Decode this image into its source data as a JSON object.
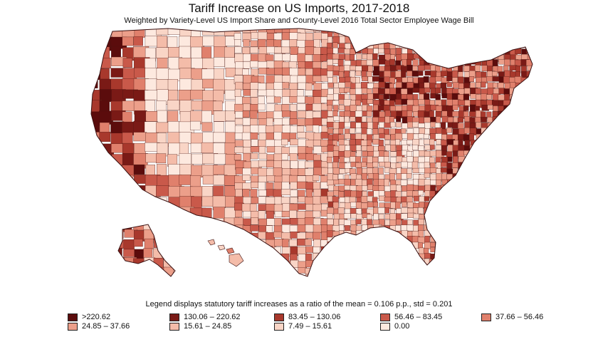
{
  "title": "Tariff Increase on US Imports, 2017-2018",
  "subtitle": "Weighted by Variety-Level US Import Share and County-Level 2016 Total Sector Employee Wage Bill",
  "legend": {
    "note": "Legend displays  statutory tariff increases as a ratio of the mean = 0.106 p.p., std = 0.201",
    "items": [
      {
        "label": ">220.62",
        "color": "#5b0c0c"
      },
      {
        "label": "130.06 – 220.62",
        "color": "#7a1a16"
      },
      {
        "label": "83.45 – 130.06",
        "color": "#a8382c"
      },
      {
        "label": "56.46 – 83.45",
        "color": "#c9594a"
      },
      {
        "label": "37.66 – 56.46",
        "color": "#e0806c"
      },
      {
        "label": "24.85 – 37.66",
        "color": "#ec9f8a"
      },
      {
        "label": "15.61 – 24.85",
        "color": "#f4bca9"
      },
      {
        "label": "7.49 – 15.61",
        "color": "#f9d5c6"
      },
      {
        "label": "0.00",
        "color": "#fde9df"
      }
    ]
  },
  "map": {
    "regions": [
      "contiguous-us",
      "alaska",
      "hawaii"
    ]
  }
}
